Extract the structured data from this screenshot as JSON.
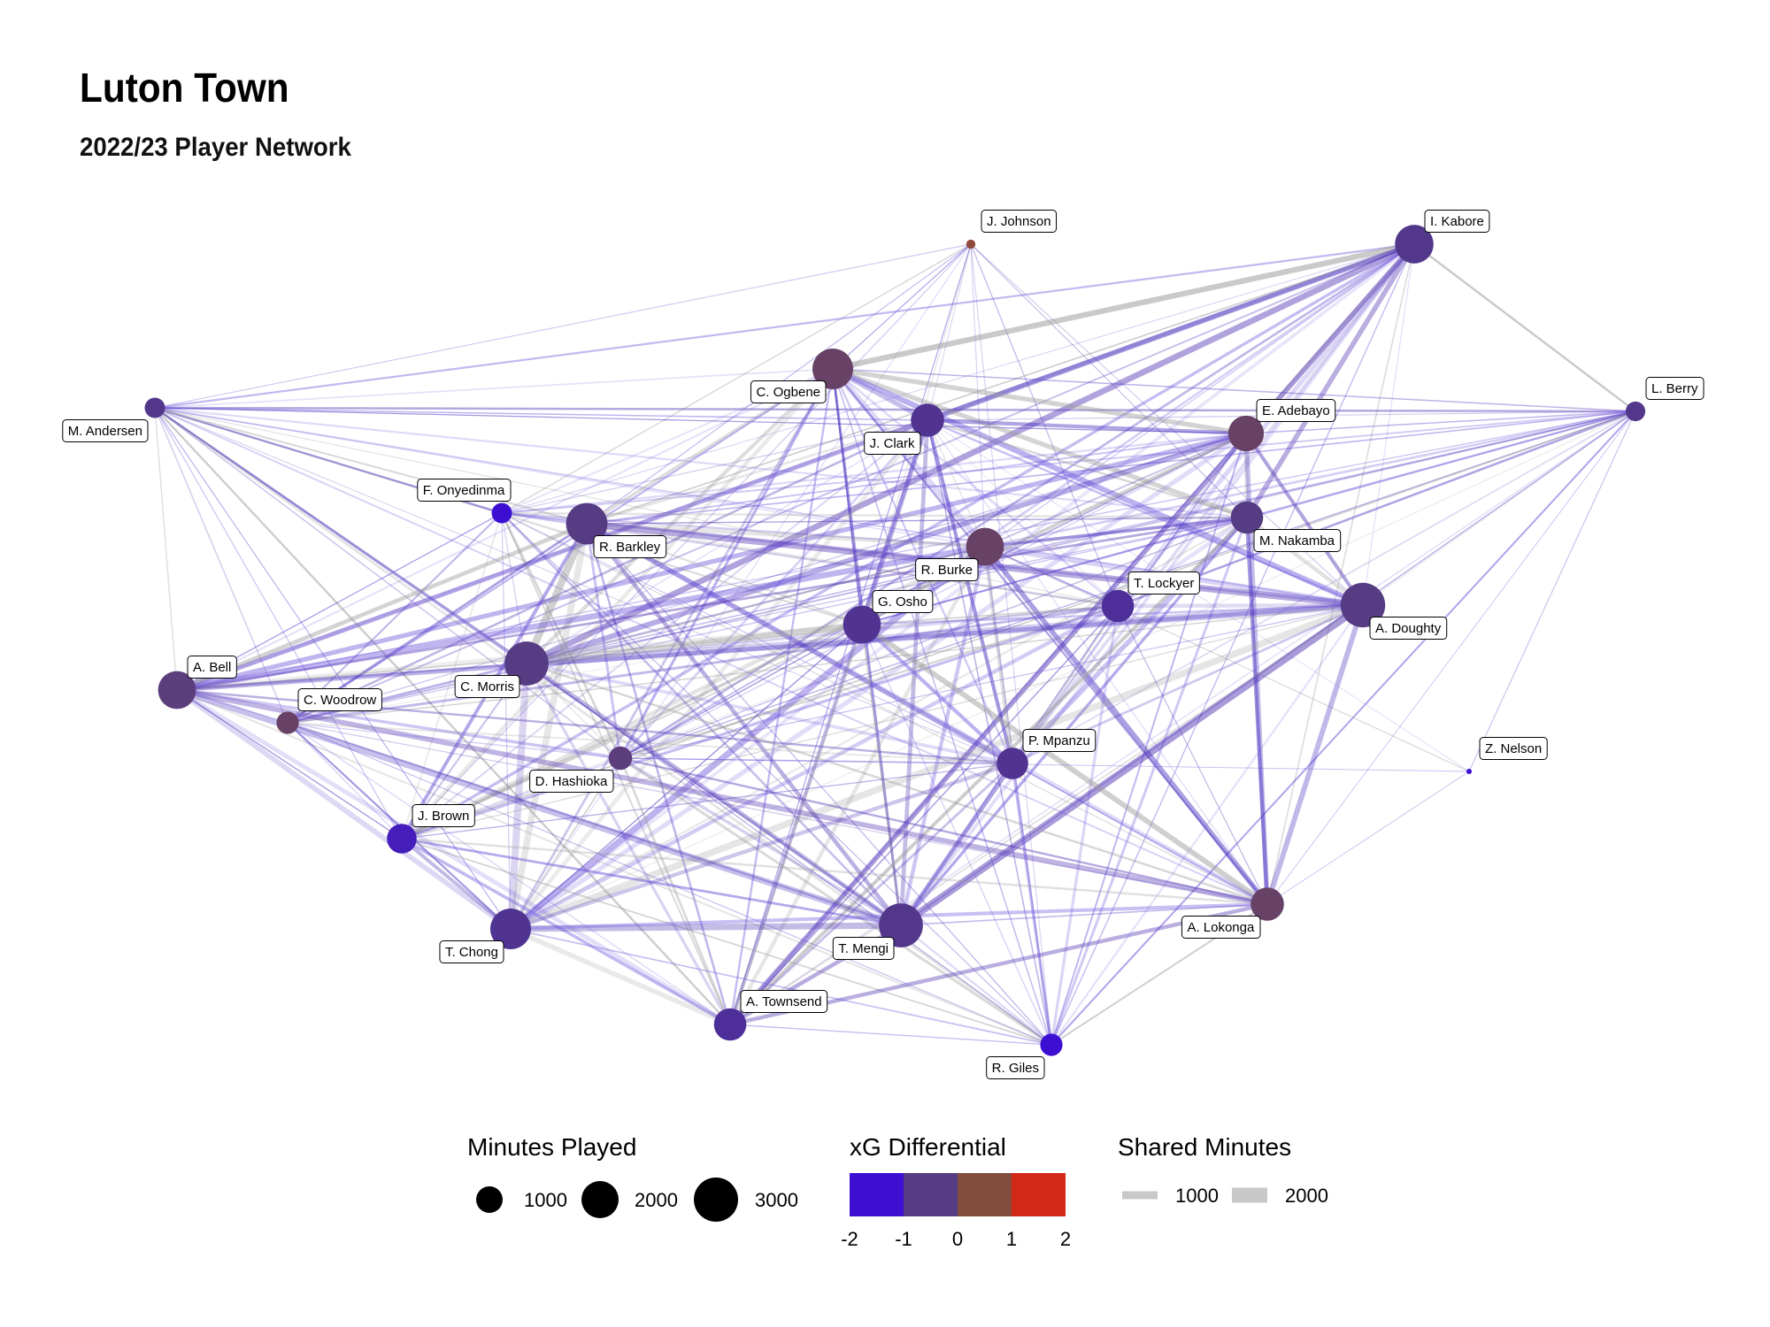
{
  "title": "Luton Town",
  "subtitle": "2022/23 Player Network",
  "chart_data": {
    "type": "network",
    "nodes": [
      {
        "id": "j-johnson",
        "name": "J. Johnson",
        "minutes": 150,
        "xg_diff": 0.3
      },
      {
        "id": "i-kabore",
        "name": "I. Kabore",
        "minutes": 2700,
        "xg_diff": -1.1
      },
      {
        "id": "l-berry",
        "name": "L. Berry",
        "minutes": 700,
        "xg_diff": -1.1
      },
      {
        "id": "m-andersen",
        "name": "M. Andersen",
        "minutes": 750,
        "xg_diff": -1.1
      },
      {
        "id": "c-ogbene",
        "name": "C. Ogbene",
        "minutes": 3000,
        "xg_diff": -0.6
      },
      {
        "id": "j-clark",
        "name": "J. Clark",
        "minutes": 2000,
        "xg_diff": -1.2
      },
      {
        "id": "e-adebayo",
        "name": "E. Adebayo",
        "minutes": 2300,
        "xg_diff": -0.6
      },
      {
        "id": "f-onyedinma",
        "name": "F. Onyedinma",
        "minutes": 750,
        "xg_diff": -2.0
      },
      {
        "id": "r-barkley",
        "name": "R. Barkley",
        "minutes": 3100,
        "xg_diff": -1.0
      },
      {
        "id": "r-burke",
        "name": "R. Burke",
        "minutes": 2600,
        "xg_diff": -0.6
      },
      {
        "id": "m-nakamba",
        "name": "M. Nakamba",
        "minutes": 1900,
        "xg_diff": -1.0
      },
      {
        "id": "t-lockyer",
        "name": "T. Lockyer",
        "minutes": 1900,
        "xg_diff": -1.3
      },
      {
        "id": "a-doughty",
        "name": "A. Doughty",
        "minutes": 3600,
        "xg_diff": -1.0
      },
      {
        "id": "g-osho",
        "name": "G. Osho",
        "minutes": 2600,
        "xg_diff": -1.2
      },
      {
        "id": "a-bell",
        "name": "A. Bell",
        "minutes": 2600,
        "xg_diff": -0.9
      },
      {
        "id": "c-morris",
        "name": "C. Morris",
        "minutes": 3500,
        "xg_diff": -1.0
      },
      {
        "id": "c-woodrow",
        "name": "C. Woodrow",
        "minutes": 900,
        "xg_diff": -0.6
      },
      {
        "id": "d-hashioka",
        "name": "D. Hashioka",
        "minutes": 1000,
        "xg_diff": -0.9
      },
      {
        "id": "p-mpanzu",
        "name": "P. Mpanzu",
        "minutes": 1800,
        "xg_diff": -1.2
      },
      {
        "id": "z-nelson",
        "name": "Z. Nelson",
        "minutes": 30,
        "xg_diff": -2.0
      },
      {
        "id": "j-brown",
        "name": "J. Brown",
        "minutes": 1600,
        "xg_diff": -1.7
      },
      {
        "id": "t-chong",
        "name": "T. Chong",
        "minutes": 3000,
        "xg_diff": -1.2
      },
      {
        "id": "t-mengi",
        "name": "T. Mengi",
        "minutes": 3500,
        "xg_diff": -1.1
      },
      {
        "id": "a-lokonga",
        "name": "A. Lokonga",
        "minutes": 2000,
        "xg_diff": -0.6
      },
      {
        "id": "a-townsend",
        "name": "A. Townsend",
        "minutes": 1900,
        "xg_diff": -1.3
      },
      {
        "id": "r-giles",
        "name": "R. Giles",
        "minutes": 900,
        "xg_diff": -2.0
      }
    ],
    "legend": {
      "minutes": {
        "title": "Minutes Played",
        "values": [
          1000,
          2000,
          3000
        ],
        "labels": [
          "1000",
          "2000",
          "3000"
        ]
      },
      "xg": {
        "title": "xG Differential",
        "ticks": [
          "-2",
          "-1",
          "0",
          "1",
          "2"
        ],
        "colors": [
          "#3c0fd2",
          "#563c82",
          "#844c3c",
          "#d22818"
        ]
      },
      "shared": {
        "title": "Shared Minutes",
        "values": [
          1000,
          2000
        ],
        "labels": [
          "1000",
          "2000"
        ]
      }
    }
  }
}
